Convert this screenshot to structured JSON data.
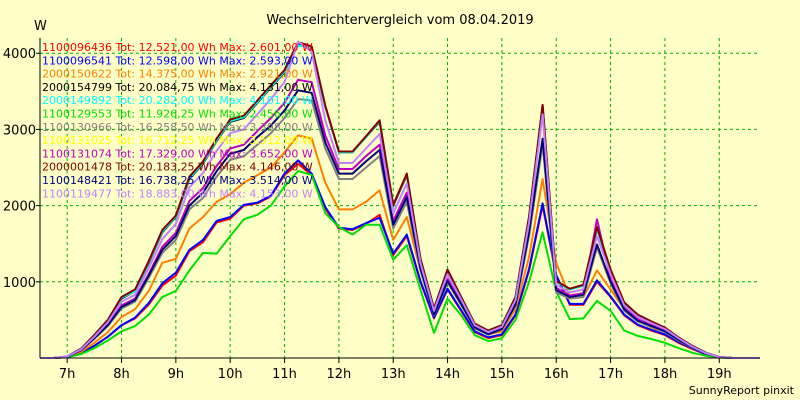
{
  "chart_data": {
    "type": "line",
    "title": "Wechselrichtervergleich vom 08.04.2019",
    "ylabel": "W",
    "credit": "SunnyReport pinxit",
    "xlim": [
      6.5,
      19.75
    ],
    "ylim": [
      0,
      4200
    ],
    "grid": true,
    "legend_position": "top-left",
    "x_ticks": [
      7,
      8,
      9,
      10,
      11,
      12,
      13,
      14,
      15,
      16,
      17,
      18,
      19
    ],
    "x_tick_labels": [
      "7h",
      "8h",
      "9h",
      "10h",
      "11h",
      "12h",
      "13h",
      "14h",
      "15h",
      "16h",
      "17h",
      "18h",
      "19h"
    ],
    "y_ticks": [
      1000,
      2000,
      3000,
      4000
    ],
    "y_tick_labels": [
      "1000",
      "2000",
      "3000",
      "4000"
    ],
    "x": [
      6.5,
      6.75,
      7,
      7.25,
      7.5,
      7.75,
      8,
      8.25,
      8.5,
      8.75,
      9,
      9.25,
      9.5,
      9.75,
      10,
      10.25,
      10.5,
      10.75,
      11,
      11.25,
      11.5,
      11.75,
      12,
      12.25,
      12.5,
      12.75,
      13,
      13.25,
      13.5,
      13.75,
      14,
      14.25,
      14.5,
      14.75,
      15,
      15.25,
      15.5,
      15.75,
      16,
      16.25,
      16.5,
      16.75,
      17,
      17.25,
      17.5,
      17.75,
      18,
      18.25,
      18.5,
      18.75,
      19,
      19.25,
      19.5,
      19.75
    ],
    "series": [
      {
        "name": "1100096436 Tot: 12.521,00 Wh Max: 2.601,00 W",
        "color": "#ff0000",
        "values": [
          0,
          0,
          10,
          60,
          160,
          280,
          430,
          520,
          700,
          950,
          1080,
          1400,
          1520,
          1780,
          1830,
          2000,
          2030,
          2120,
          2400,
          2550,
          2400,
          1960,
          1700,
          1680,
          1760,
          1880,
          1350,
          1600,
          1000,
          520,
          900,
          620,
          340,
          260,
          300,
          560,
          1150,
          2000,
          1080,
          700,
          700,
          1000,
          800,
          560,
          430,
          360,
          300,
          200,
          120,
          50,
          10,
          0,
          0,
          0
        ]
      },
      {
        "name": "1100096541 Tot: 12.598,00 Wh Max: 2.593,00 W",
        "color": "#0000ff",
        "values": [
          0,
          0,
          10,
          60,
          160,
          280,
          430,
          530,
          720,
          980,
          1120,
          1420,
          1550,
          1800,
          1850,
          2010,
          2040,
          2130,
          2420,
          2593,
          2420,
          1980,
          1710,
          1690,
          1770,
          1840,
          1370,
          1620,
          1010,
          530,
          910,
          630,
          350,
          270,
          310,
          570,
          1170,
          2030,
          1090,
          710,
          710,
          1020,
          810,
          570,
          440,
          370,
          310,
          210,
          130,
          50,
          10,
          0,
          0,
          0
        ]
      },
      {
        "name": "2000150622 Tot: 14.375,00 Wh Max: 2.921,00 W",
        "color": "#ff8000",
        "values": [
          0,
          0,
          20,
          80,
          200,
          340,
          540,
          640,
          880,
          1250,
          1300,
          1700,
          1850,
          2050,
          2150,
          2300,
          2400,
          2500,
          2700,
          2921,
          2880,
          2300,
          1950,
          1950,
          2050,
          2200,
          1550,
          1850,
          1150,
          580,
          1000,
          700,
          390,
          310,
          350,
          640,
          1330,
          2350,
          1250,
          800,
          800,
          1150,
          900,
          640,
          490,
          400,
          340,
          230,
          140,
          60,
          10,
          0,
          0,
          0
        ]
      },
      {
        "name": "2000154799 Tot: 20.084,75 Wh Max: 4.131,00 W",
        "color": "#000000",
        "values": [
          0,
          0,
          20,
          120,
          300,
          500,
          780,
          880,
          1250,
          1650,
          1850,
          2350,
          2550,
          2850,
          3100,
          3150,
          3350,
          3550,
          3750,
          4131,
          4080,
          3300,
          2700,
          2700,
          2900,
          3100,
          2000,
          2400,
          1300,
          650,
          1150,
          800,
          450,
          360,
          430,
          800,
          1850,
          3300,
          1000,
          900,
          950,
          1700,
          1150,
          720,
          560,
          480,
          390,
          270,
          160,
          70,
          15,
          0,
          0,
          0
        ]
      },
      {
        "name": "2000149892 Tot: 20.282,00 Wh Max: 4.101,00 W",
        "color": "#00ffff",
        "values": [
          0,
          0,
          20,
          120,
          300,
          500,
          790,
          880,
          1260,
          1660,
          1860,
          2360,
          2560,
          2860,
          3110,
          3160,
          3360,
          3560,
          3760,
          4101,
          4070,
          3300,
          2700,
          2700,
          2900,
          3110,
          2010,
          2410,
          1300,
          650,
          1160,
          800,
          450,
          360,
          430,
          800,
          1860,
          3300,
          1000,
          900,
          950,
          1700,
          1150,
          720,
          560,
          480,
          390,
          270,
          160,
          70,
          15,
          0,
          0,
          0
        ]
      },
      {
        "name": "1100129553 Tot: 11.926,25 Wh Max: 2.456,00 W",
        "color": "#00e000",
        "values": [
          0,
          0,
          10,
          50,
          130,
          230,
          350,
          420,
          570,
          800,
          880,
          1150,
          1380,
          1370,
          1600,
          1820,
          1880,
          2000,
          2250,
          2456,
          2400,
          1900,
          1720,
          1620,
          1750,
          1750,
          1290,
          1480,
          900,
          330,
          780,
          560,
          300,
          220,
          260,
          500,
          1000,
          1650,
          870,
          510,
          520,
          750,
          620,
          360,
          290,
          250,
          200,
          130,
          70,
          30,
          5,
          0,
          0,
          0
        ]
      },
      {
        "name": "1100130966 Tot: 16.258,50 Wh Max: 3.398,00 W",
        "color": "#808080",
        "values": [
          0,
          0,
          15,
          100,
          250,
          420,
          650,
          740,
          1050,
          1380,
          1550,
          1950,
          2100,
          2380,
          2600,
          2650,
          2800,
          2950,
          3150,
          3398,
          3380,
          2750,
          2350,
          2350,
          2500,
          2650,
          1700,
          2050,
          1150,
          560,
          990,
          700,
          390,
          310,
          370,
          690,
          1600,
          2800,
          860,
          780,
          800,
          1450,
          980,
          620,
          480,
          410,
          340,
          230,
          140,
          60,
          10,
          0,
          0,
          0
        ]
      },
      {
        "name": "1100131025 Tot: 16.712,25 Wh Max: 3.512,00 W",
        "color": "#ffff00",
        "values": [
          0,
          0,
          15,
          100,
          260,
          430,
          670,
          760,
          1080,
          1420,
          1600,
          2000,
          2170,
          2450,
          2680,
          2730,
          2900,
          3050,
          3250,
          3512,
          3480,
          2830,
          2420,
          2420,
          2580,
          2730,
          1750,
          2110,
          1180,
          570,
          1010,
          710,
          400,
          310,
          380,
          700,
          1650,
          2880,
          890,
          800,
          830,
          1490,
          1000,
          640,
          490,
          420,
          350,
          240,
          140,
          60,
          10,
          0,
          0,
          0
        ]
      },
      {
        "name": "1100131074 Tot: 17.329,00 Wh Max: 3.652,00 W",
        "color": "#c000c0",
        "values": [
          0,
          0,
          15,
          100,
          260,
          440,
          690,
          780,
          1100,
          1460,
          1640,
          2060,
          2230,
          2520,
          2750,
          2800,
          2980,
          3150,
          3350,
          3652,
          3620,
          2920,
          2480,
          2480,
          2650,
          2800,
          1800,
          2170,
          1210,
          590,
          1040,
          730,
          410,
          320,
          390,
          720,
          1700,
          3320,
          920,
          820,
          850,
          1820,
          1030,
          660,
          510,
          430,
          360,
          250,
          150,
          60,
          10,
          0,
          0,
          0
        ]
      },
      {
        "name": "2000001478 Tot: 20.183,25 Wh Max: 4.146,00 W",
        "color": "#800000",
        "values": [
          0,
          0,
          20,
          120,
          300,
          500,
          800,
          900,
          1270,
          1680,
          1870,
          2380,
          2580,
          2880,
          3130,
          3180,
          3380,
          3580,
          3780,
          4146,
          4090,
          3310,
          2710,
          2710,
          2910,
          3120,
          2010,
          2420,
          1310,
          650,
          1160,
          800,
          450,
          360,
          430,
          800,
          1860,
          3320,
          1010,
          910,
          960,
          1720,
          1160,
          730,
          570,
          480,
          400,
          270,
          160,
          70,
          15,
          0,
          0,
          0
        ]
      },
      {
        "name": "1100148421 Tot: 16.738,25 Wh Max: 3.514,00 W",
        "color": "#000080",
        "values": [
          0,
          0,
          15,
          100,
          260,
          430,
          670,
          760,
          1080,
          1420,
          1600,
          2000,
          2170,
          2450,
          2680,
          2730,
          2900,
          3050,
          3250,
          3514,
          3480,
          2830,
          2420,
          2420,
          2580,
          2730,
          1750,
          2110,
          1180,
          570,
          1010,
          710,
          400,
          310,
          380,
          700,
          1650,
          2880,
          890,
          800,
          830,
          1490,
          1000,
          640,
          490,
          420,
          350,
          240,
          140,
          60,
          10,
          0,
          0,
          0
        ]
      },
      {
        "name": "1100119477 Tot: 18.883,00 Wh Max: 4.153,00 W",
        "color": "#c080ff",
        "values": [
          0,
          0,
          20,
          110,
          280,
          470,
          740,
          830,
          1180,
          1560,
          1760,
          2240,
          2430,
          2720,
          2950,
          3000,
          3200,
          3400,
          3620,
          4153,
          4020,
          3120,
          2560,
          2560,
          2750,
          2940,
          1900,
          2290,
          1250,
          620,
          1100,
          770,
          430,
          340,
          410,
          760,
          1780,
          3200,
          960,
          860,
          900,
          1600,
          1100,
          690,
          540,
          460,
          380,
          260,
          150,
          65,
          12,
          0,
          0,
          0
        ]
      }
    ]
  }
}
